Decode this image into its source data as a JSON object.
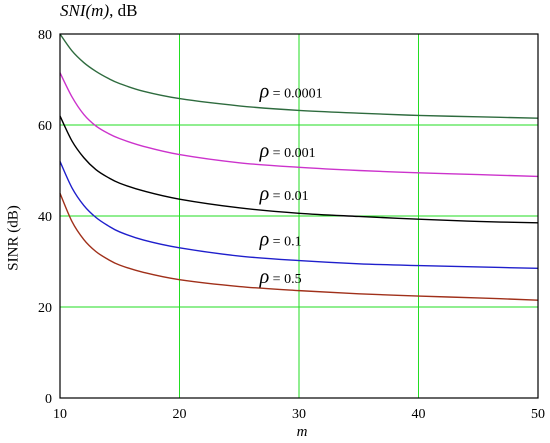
{
  "header": {
    "title_italic": "SNI(m)",
    "title_unit": ",  dB"
  },
  "chart_data": {
    "type": "line",
    "xlabel": "m",
    "ylabel": "SINR (dB)",
    "xlim": [
      10,
      50
    ],
    "ylim": [
      0,
      80
    ],
    "x_ticks": [
      "10",
      "20",
      "30",
      "40",
      "50"
    ],
    "y_ticks": [
      "0",
      "20",
      "40",
      "60",
      "80"
    ],
    "grid": true,
    "grid_color": "#22dd22",
    "x": [
      10,
      11,
      12,
      13,
      14,
      15,
      17,
      20,
      25,
      30,
      35,
      40,
      45,
      50
    ],
    "series": [
      {
        "name": "ρ = 0.0001",
        "symbol": "ρ",
        "value_text": " = 0.0001",
        "color": "#2e6b3e",
        "label_at": [
          26.7,
          66
        ],
        "values": [
          80,
          76.3,
          73.7,
          71.8,
          70.3,
          69.1,
          67.4,
          65.8,
          64.2,
          63.2,
          62.6,
          62.1,
          61.8,
          61.5
        ]
      },
      {
        "name": "ρ = 0.001",
        "symbol": "ρ",
        "value_text": " = 0.001",
        "color": "#cc33cc",
        "label_at": [
          26.7,
          53
        ],
        "values": [
          71.5,
          66.2,
          62.3,
          59.8,
          58.2,
          57,
          55.3,
          53.5,
          51.7,
          50.7,
          50,
          49.5,
          49.1,
          48.7
        ]
      },
      {
        "name": "ρ = 0.01",
        "symbol": "ρ",
        "value_text": " = 0.01",
        "color": "#000000",
        "label_at": [
          26.7,
          43.5
        ],
        "values": [
          62,
          56.5,
          52.8,
          50.2,
          48.5,
          47.2,
          45.5,
          43.7,
          41.8,
          40.6,
          39.9,
          39.3,
          38.8,
          38.5
        ]
      },
      {
        "name": "ρ = 0.1",
        "symbol": "ρ",
        "value_text": " = 0.1",
        "color": "#1f1fcc",
        "label_at": [
          26.7,
          33.5
        ],
        "values": [
          52,
          46.2,
          42.3,
          39.7,
          37.9,
          36.5,
          34.7,
          33,
          31.2,
          30.2,
          29.5,
          29.1,
          28.8,
          28.5
        ]
      },
      {
        "name": "ρ = 0.5",
        "symbol": "ρ",
        "value_text": " = 0.5",
        "color": "#a0301a",
        "label_at": [
          26.7,
          25.3
        ],
        "values": [
          45,
          38.8,
          34.8,
          32.2,
          30.5,
          29.2,
          27.6,
          26,
          24.5,
          23.6,
          22.9,
          22.4,
          22,
          21.5
        ]
      }
    ]
  }
}
